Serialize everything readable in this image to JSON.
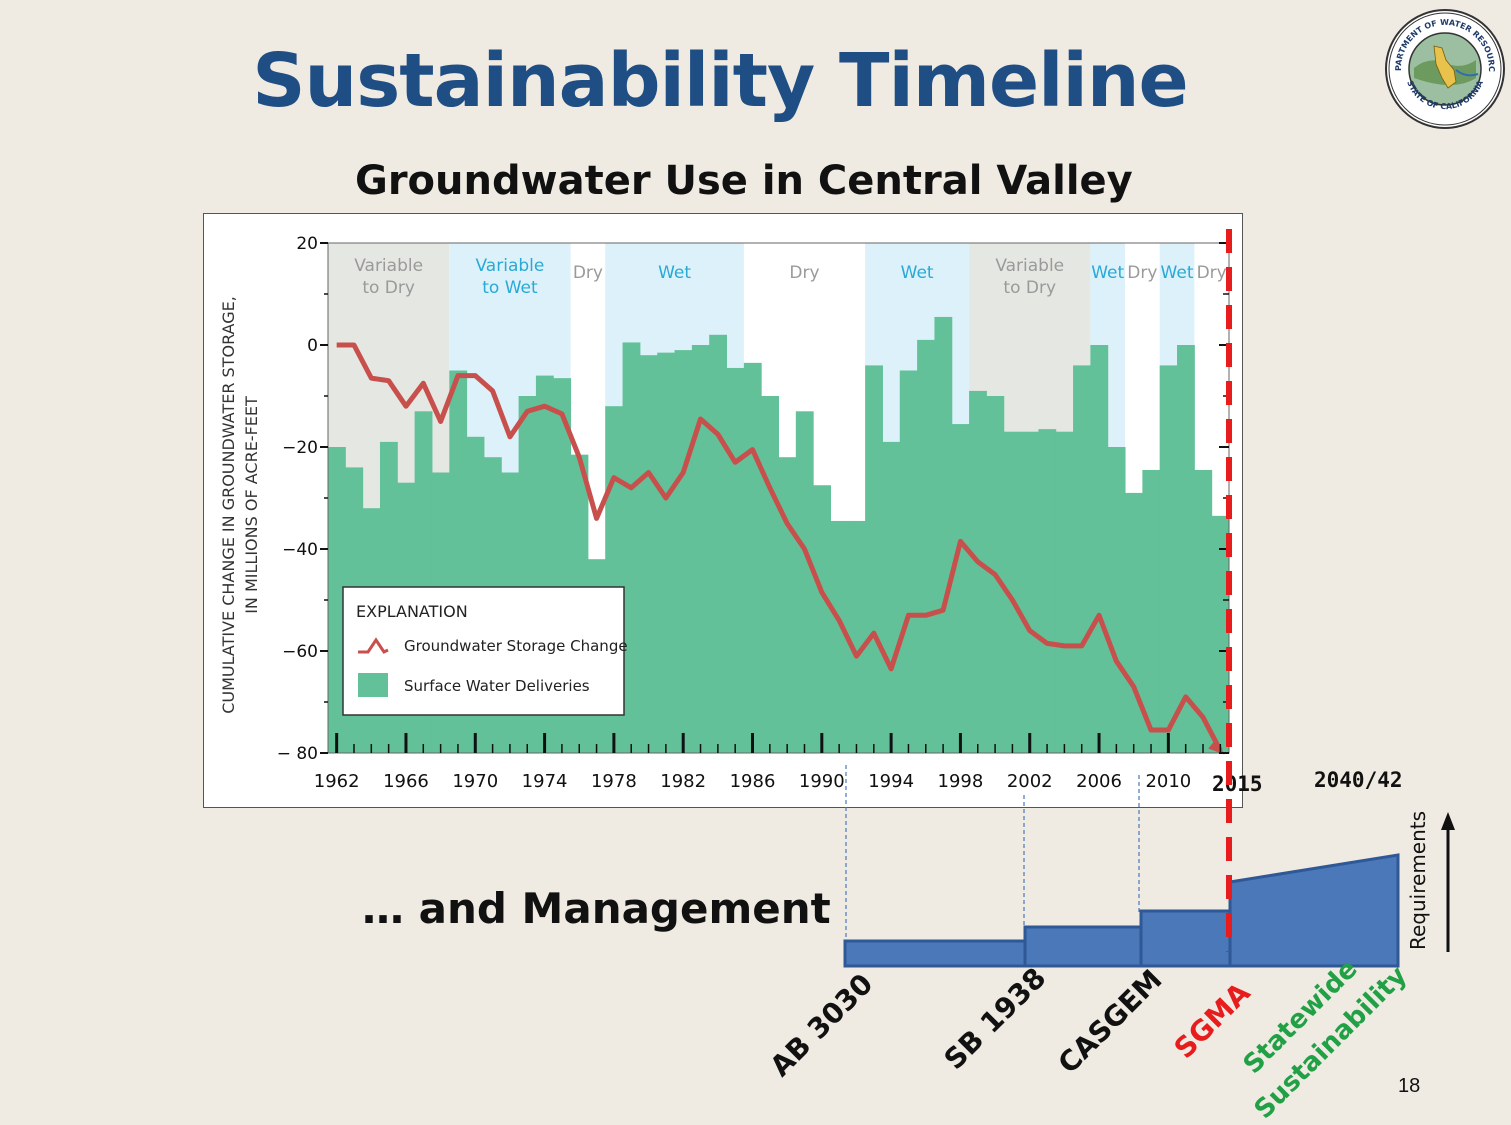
{
  "slide": {
    "title": "Sustainability Timeline",
    "subtitle": "Groundwater Use in Central Valley",
    "management_heading": "… and Management",
    "page_number": "18",
    "seal": {
      "top_text": "DEPARTMENT OF WATER RESOURCES",
      "bottom_text": "STATE OF CALIFORNIA"
    }
  },
  "colors": {
    "title": "#1f4e85",
    "bars": "#62c199",
    "line": "#c8504c",
    "dry_gray": "#e5e7e2",
    "wet_blue": "#dcf1f9",
    "wet_text": "#29a9d6",
    "gray_text": "#9a9a9a",
    "sgma_dash": "#e81c1c",
    "timeline_fill": "#4a78b8",
    "timeline_stroke": "#2f5897",
    "sgma_label": "#e81c1c",
    "sustain_label": "#22a046"
  },
  "chart_data": {
    "type": "bar+line",
    "ylabel_line1": "CUMULATIVE CHANGE IN GROUNDWATER STORAGE,",
    "ylabel_line2": "IN MILLIONS OF ACRE-FEET",
    "ylim": [
      -80,
      20
    ],
    "yticks": [
      20,
      0,
      -20,
      -40,
      -60,
      -80
    ],
    "ytick_labels": [
      "20",
      "0",
      "−20",
      "−40",
      "−60",
      "− 80"
    ],
    "xlim": [
      1961.5,
      2013.5
    ],
    "xticks": [
      1962,
      1966,
      1970,
      1974,
      1978,
      1982,
      1986,
      1990,
      1994,
      1998,
      2002,
      2006,
      2010
    ],
    "periods": [
      {
        "label": [
          "Variable",
          "to Dry"
        ],
        "start": 1961.5,
        "end": 1968.5,
        "kind": "dry"
      },
      {
        "label": [
          "Variable",
          "to Wet"
        ],
        "start": 1968.5,
        "end": 1975.5,
        "kind": "wet"
      },
      {
        "label": [
          "Dry"
        ],
        "start": 1975.5,
        "end": 1977.5,
        "kind": "none"
      },
      {
        "label": [
          "Wet"
        ],
        "start": 1977.5,
        "end": 1985.5,
        "kind": "wet"
      },
      {
        "label": [
          "Dry"
        ],
        "start": 1985.5,
        "end": 1992.5,
        "kind": "none"
      },
      {
        "label": [
          "Wet"
        ],
        "start": 1992.5,
        "end": 1998.5,
        "kind": "wet"
      },
      {
        "label": [
          "Variable",
          "to Dry"
        ],
        "start": 1998.5,
        "end": 2005.5,
        "kind": "dry"
      },
      {
        "label": [
          "Wet"
        ],
        "start": 2005.5,
        "end": 2007.5,
        "kind": "wet"
      },
      {
        "label": [
          "Dry"
        ],
        "start": 2007.5,
        "end": 2009.5,
        "kind": "none"
      },
      {
        "label": [
          "Wet"
        ],
        "start": 2009.5,
        "end": 2011.5,
        "kind": "wet"
      },
      {
        "label": [
          "Dry"
        ],
        "start": 2011.5,
        "end": 2013.5,
        "kind": "none"
      }
    ],
    "surface_water_deliveries": {
      "name": "Surface Water Deliveries",
      "years": [
        1962,
        1963,
        1964,
        1965,
        1966,
        1967,
        1968,
        1969,
        1970,
        1971,
        1972,
        1973,
        1974,
        1975,
        1976,
        1977,
        1978,
        1979,
        1980,
        1981,
        1982,
        1983,
        1984,
        1985,
        1986,
        1987,
        1988,
        1989,
        1990,
        1991,
        1992,
        1993,
        1994,
        1995,
        1996,
        1997,
        1998,
        1999,
        2000,
        2001,
        2002,
        2003,
        2004,
        2005,
        2006,
        2007,
        2008,
        2009,
        2010,
        2011,
        2012,
        2013
      ],
      "values": [
        -20,
        -24,
        -32,
        -19,
        -27,
        -13,
        -25,
        -5,
        -18,
        -22,
        -25,
        -10,
        -6,
        -6.5,
        -21.5,
        -42,
        -12,
        0.5,
        -2,
        -1.5,
        -1,
        0,
        2,
        -4.5,
        -3.5,
        -10,
        -22,
        -13,
        -27.5,
        -34.5,
        -34.5,
        -4,
        -19,
        -5,
        1,
        5.5,
        -15.5,
        -9,
        -10,
        -17,
        -17,
        -16.5,
        -17,
        -4,
        0,
        -20,
        -29,
        -24.5,
        -4,
        0,
        -24.5,
        -33.5
      ]
    },
    "groundwater_storage_change": {
      "name": "Groundwater Storage Change",
      "years": [
        1962,
        1963,
        1964,
        1965,
        1966,
        1967,
        1968,
        1969,
        1970,
        1971,
        1972,
        1973,
        1974,
        1975,
        1976,
        1977,
        1978,
        1979,
        1980,
        1981,
        1982,
        1983,
        1984,
        1985,
        1986,
        1987,
        1988,
        1989,
        1990,
        1991,
        1992,
        1993,
        1994,
        1995,
        1996,
        1997,
        1998,
        1999,
        2000,
        2001,
        2002,
        2003,
        2004,
        2005,
        2006,
        2007,
        2008,
        2009,
        2010,
        2011,
        2012,
        2013
      ],
      "values": [
        0,
        0,
        -6.5,
        -7,
        -12,
        -7.5,
        -15,
        -6,
        -6,
        -9,
        -18,
        -13,
        -12,
        -13.5,
        -22,
        -34,
        -26,
        -28,
        -25,
        -30,
        -25,
        -14.5,
        -17.5,
        -23,
        -20.5,
        -28,
        -35,
        -40,
        -48.5,
        -54,
        -61,
        -56.5,
        -63.5,
        -53,
        -53,
        -52,
        -38.5,
        -42.5,
        -45,
        -50,
        -56,
        -58.5,
        -59,
        -59,
        -53,
        -62,
        -67,
        -75.5,
        -75.5,
        -69,
        -73,
        -79.5
      ]
    },
    "legend": {
      "title": "EXPLANATION",
      "line_label": "Groundwater Storage Change",
      "bar_label": "Surface Water Deliveries",
      "placement": "lower-left"
    }
  },
  "timeline": {
    "year_2015": "2015",
    "year_2040": "2040/42",
    "axis_label": "Requirements",
    "milestones": [
      {
        "label": "AB 3030",
        "year": 1992
      },
      {
        "label": "SB 1938",
        "year": 2002
      },
      {
        "label": "CASGEM",
        "year": 2009
      },
      {
        "label": "SGMA",
        "year": 2015
      },
      {
        "label": "Statewide",
        "year": 2040
      },
      {
        "label": "Sustainability",
        "year": 2042
      }
    ]
  }
}
